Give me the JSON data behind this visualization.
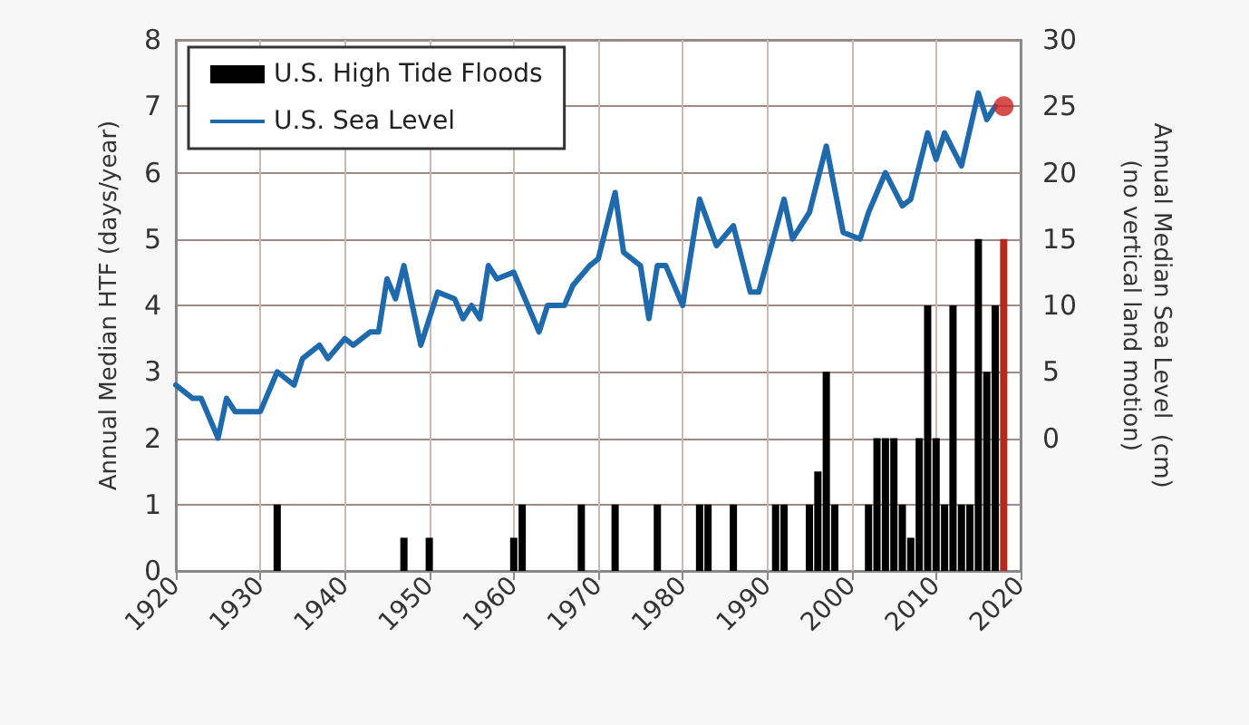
{
  "chart_data": {
    "type": "bar",
    "ylabel": "Annual Median HTF (days/year)",
    "y2label": "Annual Median Sea Level  (cm)\n(no vertical land motion)",
    "xlim": [
      1920,
      2020
    ],
    "xticks": [
      1920,
      1930,
      1940,
      1950,
      1960,
      1970,
      1980,
      1990,
      2000,
      2010,
      2020
    ],
    "ylim": [
      0,
      8
    ],
    "yticks": [
      0,
      1,
      2,
      3,
      4,
      5,
      6,
      7,
      8
    ],
    "y2lim": [
      -10,
      30
    ],
    "y2ticks": [
      0,
      5,
      10,
      15,
      20,
      25,
      30
    ],
    "grid": true,
    "legend": "top left",
    "series": [
      {
        "name": "U.S. High Tide Floods",
        "color": "#000000",
        "x": [
          1932,
          1947,
          1950,
          1960,
          1961,
          1968,
          1972,
          1977,
          1982,
          1983,
          1986,
          1991,
          1992,
          1995,
          1996,
          1997,
          1998,
          2002,
          2003,
          2004,
          2005,
          2006,
          2007,
          2008,
          2009,
          2010,
          2011,
          2012,
          2013,
          2014,
          2015,
          2016,
          2017,
          2018
        ],
        "values": [
          1,
          0.5,
          0.5,
          0.5,
          1,
          1,
          1,
          1,
          1,
          1,
          1,
          1,
          1,
          1,
          1.5,
          3,
          1,
          1,
          2,
          2,
          2,
          1,
          0.5,
          2,
          4,
          2,
          1,
          4,
          1,
          1,
          5,
          3,
          4,
          5
        ],
        "colors": [
          "#000000",
          "#000000",
          "#000000",
          "#000000",
          "#000000",
          "#000000",
          "#000000",
          "#000000",
          "#000000",
          "#000000",
          "#000000",
          "#000000",
          "#000000",
          "#000000",
          "#000000",
          "#000000",
          "#000000",
          "#000000",
          "#000000",
          "#000000",
          "#000000",
          "#000000",
          "#000000",
          "#000000",
          "#000000",
          "#000000",
          "#000000",
          "#000000",
          "#000000",
          "#000000",
          "#000000",
          "#000000",
          "#000000",
          "#b22a1e"
        ]
      },
      {
        "type": "line",
        "name": "U.S. Sea Level",
        "color": "#1f6aad",
        "axis": "y2",
        "x": [
          1920,
          1922,
          1923,
          1925,
          1926,
          1927,
          1930,
          1932,
          1934,
          1935,
          1937,
          1938,
          1940,
          1941,
          1943,
          1944,
          1945,
          1946,
          1947,
          1949,
          1951,
          1953,
          1954,
          1955,
          1956,
          1957,
          1958,
          1960,
          1961,
          1963,
          1964,
          1966,
          1967,
          1969,
          1970,
          1972,
          1973,
          1975,
          1976,
          1977,
          1978,
          1980,
          1982,
          1984,
          1986,
          1988,
          1989,
          1992,
          1993,
          1995,
          1997,
          1999,
          2001,
          2002,
          2004,
          2006,
          2007,
          2009,
          2010,
          2011,
          2013,
          2015,
          2016,
          2017
        ],
        "values": [
          4,
          3,
          3,
          0,
          3,
          2,
          2,
          5,
          4,
          6,
          7,
          6,
          7.5,
          7,
          8,
          8,
          12,
          10.5,
          13,
          7,
          11,
          10.5,
          9,
          10,
          9,
          13,
          12,
          12.5,
          11,
          8,
          10,
          10,
          11.5,
          13,
          13.5,
          18.5,
          14,
          13,
          9,
          13,
          13,
          10,
          18,
          14.5,
          16,
          11,
          11,
          18,
          15,
          17,
          22,
          15.5,
          15,
          17,
          20,
          17.5,
          18,
          23,
          21,
          23,
          20.5,
          26,
          24,
          25
        ]
      },
      {
        "type": "scatter",
        "color": "#cc2222",
        "axis": "y2",
        "x": [
          2018
        ],
        "values": [
          25
        ]
      }
    ]
  }
}
